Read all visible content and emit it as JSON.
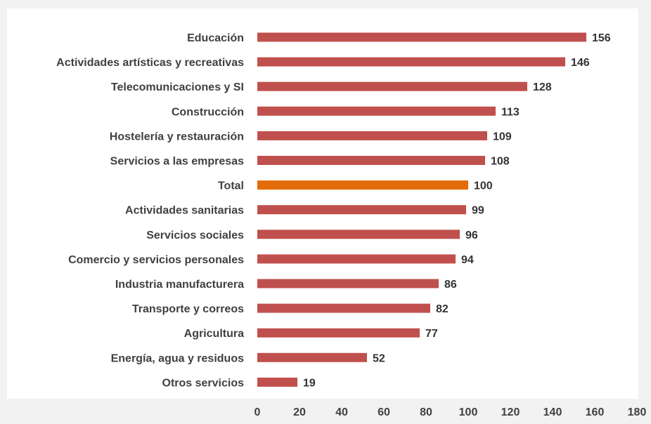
{
  "chart_data": {
    "type": "bar",
    "orientation": "horizontal",
    "title": "",
    "xlabel": "",
    "ylabel": "",
    "xlim": [
      0,
      180
    ],
    "ticks": [
      "0",
      "20",
      "40",
      "60",
      "80",
      "100",
      "120",
      "140",
      "160",
      "180"
    ],
    "grid": false,
    "legend": "none",
    "colors": {
      "default_bar": "#c0504d",
      "highlight_bar": "#e36c0a"
    },
    "categories": [
      "Educación",
      "Actividades artísticas y recreativas",
      "Telecomunicaciones y SI",
      "Construcción",
      "Hostelería y restauración",
      "Servicios a las empresas",
      "Total",
      "Actividades sanitarias",
      "Servicios sociales",
      "Comercio y servicios personales",
      "Industria manufacturera",
      "Transporte y correos",
      "Agricultura",
      "Energía, agua y residuos",
      "Otros servicios"
    ],
    "values": [
      156,
      146,
      128,
      113,
      109,
      108,
      100,
      99,
      96,
      94,
      86,
      82,
      77,
      52,
      19
    ],
    "value_labels": [
      "156",
      "146",
      "128",
      "113",
      "109",
      "108",
      "100",
      "99",
      "96",
      "94",
      "86",
      "82",
      "77",
      "52",
      "19"
    ],
    "highlight": "Total"
  }
}
